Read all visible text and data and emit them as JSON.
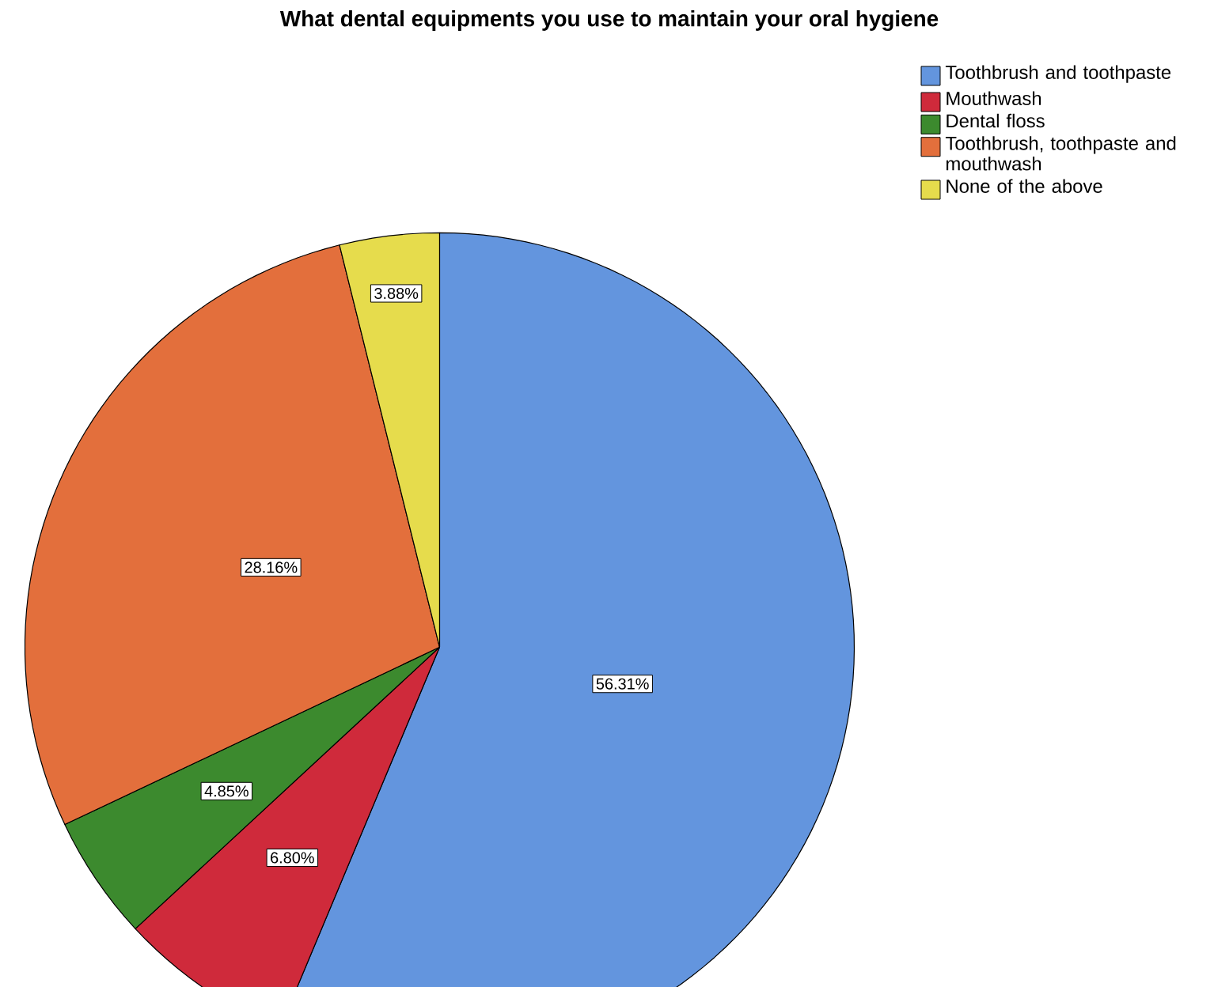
{
  "chart_data": {
    "type": "pie",
    "title": "What dental equipments you use to maintain your oral hygiene",
    "categories": [
      "Toothbrush and toothpaste",
      "Mouthwash",
      "Dental floss",
      "Toothbrush, toothpaste and mouthwash",
      "None of the above"
    ],
    "values": [
      56.31,
      6.8,
      4.85,
      28.16,
      3.88
    ],
    "value_labels": [
      "56.31%",
      "6.80%",
      "4.85%",
      "28.16%",
      "3.88%"
    ],
    "colors": [
      "#6395de",
      "#cf2a3b",
      "#3c8a2e",
      "#e36f3c",
      "#e6dc4c"
    ],
    "legend": "top right"
  }
}
